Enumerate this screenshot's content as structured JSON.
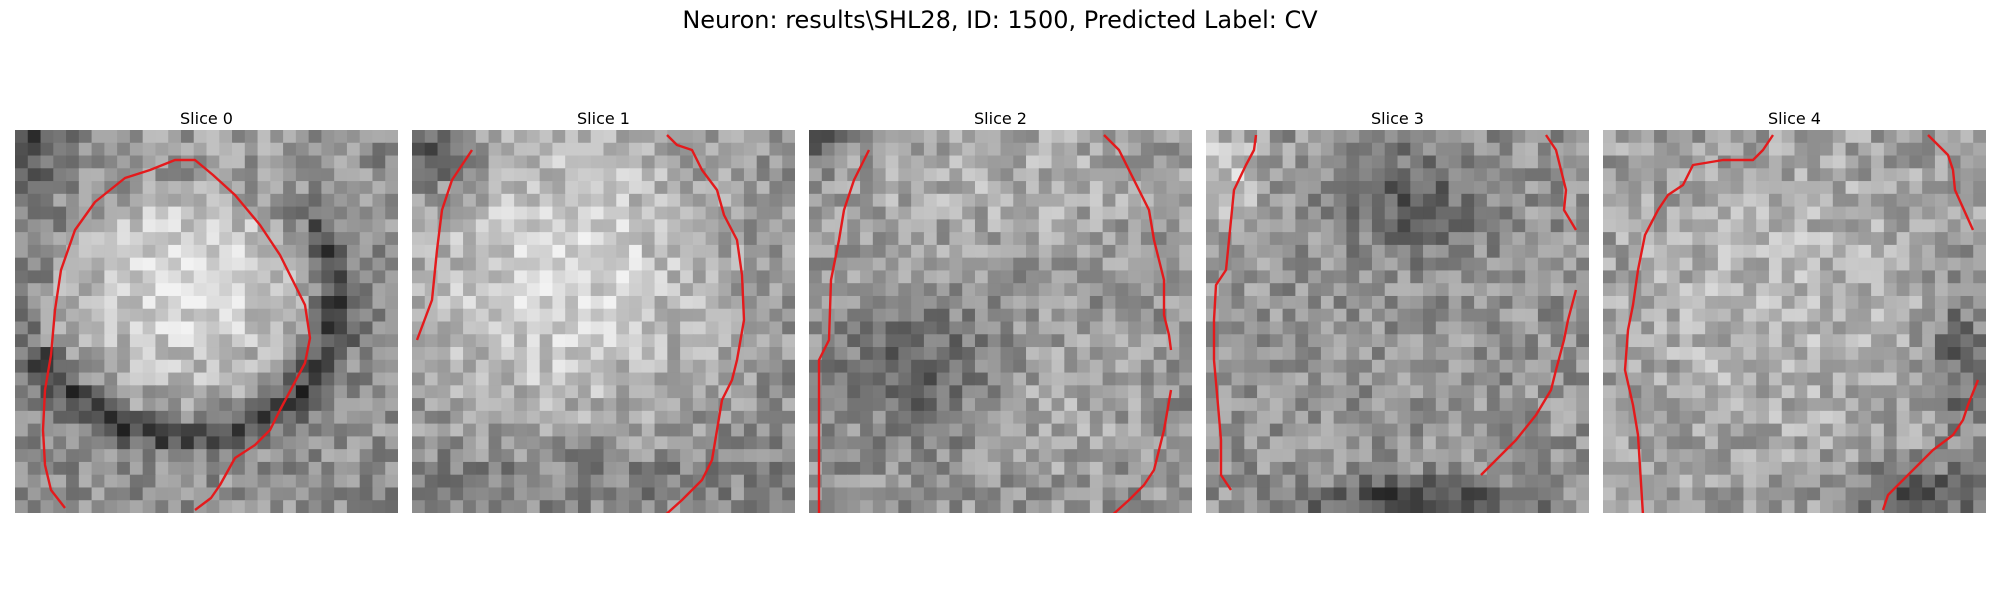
{
  "figure": {
    "title": "Neuron: results\\SHL28, ID: 1500, Predicted Label: CV",
    "contour_color": "#e41a1c",
    "colormap": "gray",
    "slices": [
      {
        "title": "Slice 0"
      },
      {
        "title": "Slice 1"
      },
      {
        "title": "Slice 2"
      },
      {
        "title": "Slice 3"
      },
      {
        "title": "Slice 4"
      }
    ]
  }
}
